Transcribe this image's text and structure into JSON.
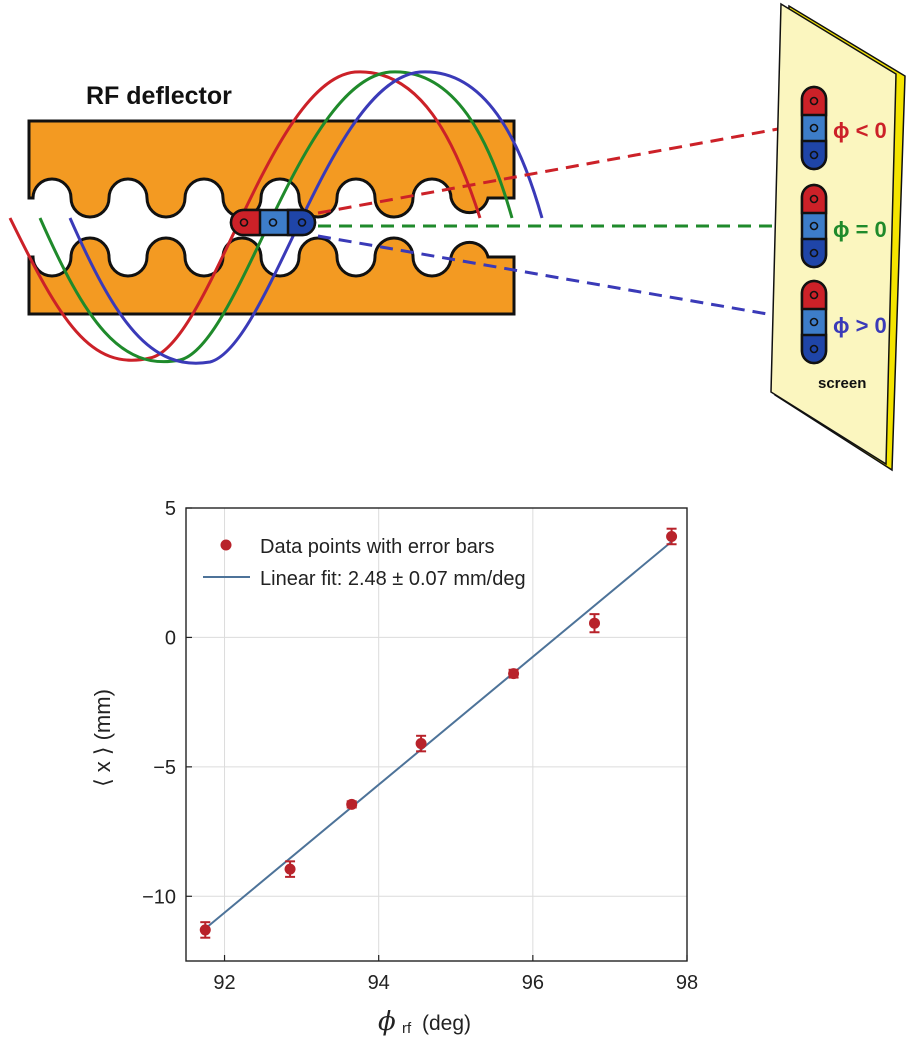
{
  "diagram": {
    "deflector_label": "RF deflector",
    "screen_label": "screen",
    "phase_labels": {
      "negative": "ϕ < 0",
      "zero": "ϕ = 0",
      "positive": "ϕ > 0"
    },
    "colors": {
      "cavity": "#f39a22",
      "screen": "#fbf6bf",
      "screen_edge": "#f4e400",
      "red": "#cc2128",
      "green": "#1f8a2b",
      "blue": "#3a3ab8",
      "bunch_light": "#3d7dc9",
      "bunch_dark": "#1f45a8"
    }
  },
  "chart_data": {
    "type": "scatter",
    "xlabel_symbol": "ϕ",
    "xlabel_sub": "rf",
    "xlabel_unit": "(deg)",
    "ylabel": "⟨ x ⟩ (mm)",
    "xlim": [
      91.5,
      98
    ],
    "ylim": [
      -12.5,
      5
    ],
    "xticks": [
      92,
      94,
      96,
      98
    ],
    "yticks": [
      5,
      0,
      -5,
      -10
    ],
    "ytick_labels": [
      "5",
      "0",
      "−5",
      "−10"
    ],
    "grid": true,
    "legend_position": "top-left",
    "series": [
      {
        "name": "Data points with error bars",
        "color": "#b8222a",
        "x": [
          91.75,
          92.85,
          93.65,
          94.55,
          95.75,
          96.8,
          97.8
        ],
        "y": [
          -11.3,
          -8.95,
          -6.45,
          -4.1,
          -1.4,
          0.55,
          3.9
        ],
        "err": [
          0.3,
          0.3,
          0.12,
          0.3,
          0.15,
          0.35,
          0.3
        ]
      },
      {
        "name": "Linear fit: 2.48 ± 0.07 mm/deg",
        "color": "#4d7399",
        "x": [
          91.75,
          97.8
        ],
        "y": [
          -11.25,
          3.7
        ]
      }
    ]
  }
}
